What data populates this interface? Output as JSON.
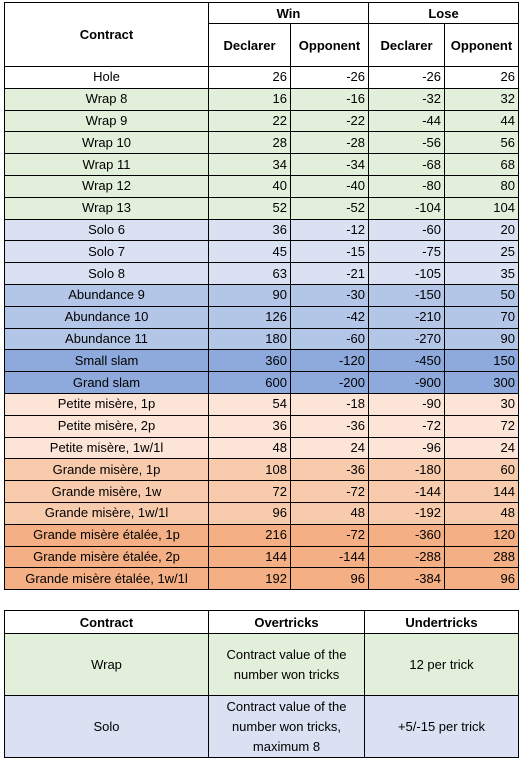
{
  "main": {
    "header": {
      "contract": "Contract",
      "win": "Win",
      "lose": "Lose",
      "declarer": "Declarer",
      "opponent": "Opponent"
    },
    "rows": [
      {
        "name": "Hole",
        "color": "#ffffff",
        "values": [
          "26",
          "-26",
          "-26",
          "26"
        ]
      },
      {
        "name": "Wrap 8",
        "color": "#e2efda",
        "values": [
          "16",
          "-16",
          "-32",
          "32"
        ]
      },
      {
        "name": "Wrap 9",
        "color": "#e2efda",
        "values": [
          "22",
          "-22",
          "-44",
          "44"
        ]
      },
      {
        "name": "Wrap 10",
        "color": "#e2efda",
        "values": [
          "28",
          "-28",
          "-56",
          "56"
        ]
      },
      {
        "name": "Wrap 11",
        "color": "#e2efda",
        "values": [
          "34",
          "-34",
          "-68",
          "68"
        ]
      },
      {
        "name": "Wrap 12",
        "color": "#e2efda",
        "values": [
          "40",
          "-40",
          "-80",
          "80"
        ]
      },
      {
        "name": "Wrap 13",
        "color": "#e2efda",
        "values": [
          "52",
          "-52",
          "-104",
          "104"
        ]
      },
      {
        "name": "Solo 6",
        "color": "#d9e1f2",
        "values": [
          "36",
          "-12",
          "-60",
          "20"
        ]
      },
      {
        "name": "Solo 7",
        "color": "#d9e1f2",
        "values": [
          "45",
          "-15",
          "-75",
          "25"
        ]
      },
      {
        "name": "Solo 8",
        "color": "#d9e1f2",
        "values": [
          "63",
          "-21",
          "-105",
          "35"
        ]
      },
      {
        "name": "Abundance 9",
        "color": "#b4c6e7",
        "values": [
          "90",
          "-30",
          "-150",
          "50"
        ]
      },
      {
        "name": "Abundance 10",
        "color": "#b4c6e7",
        "values": [
          "126",
          "-42",
          "-210",
          "70"
        ]
      },
      {
        "name": "Abundance 11",
        "color": "#b4c6e7",
        "values": [
          "180",
          "-60",
          "-270",
          "90"
        ]
      },
      {
        "name": "Small slam",
        "color": "#8ea9db",
        "values": [
          "360",
          "-120",
          "-450",
          "150"
        ]
      },
      {
        "name": "Grand slam",
        "color": "#8ea9db",
        "values": [
          "600",
          "-200",
          "-900",
          "300"
        ]
      },
      {
        "name": "Petite misère, 1p",
        "color": "#fce4d6",
        "values": [
          "54",
          "-18",
          "-90",
          "30"
        ]
      },
      {
        "name": "Petite misère, 2p",
        "color": "#fce4d6",
        "values": [
          "36",
          "-36",
          "-72",
          "72"
        ]
      },
      {
        "name": "Petite misère, 1w/1l",
        "color": "#fce4d6",
        "values": [
          "48",
          "24",
          "-96",
          "24"
        ]
      },
      {
        "name": "Grande misère, 1p",
        "color": "#f8cbad",
        "values": [
          "108",
          "-36",
          "-180",
          "60"
        ]
      },
      {
        "name": "Grande misère, 1w",
        "color": "#f8cbad",
        "values": [
          "72",
          "-72",
          "-144",
          "144"
        ]
      },
      {
        "name": "Grande misère, 1w/1l",
        "color": "#f8cbad",
        "values": [
          "96",
          "48",
          "-192",
          "48"
        ]
      },
      {
        "name": "Grande misère étalée, 1p",
        "color": "#f4b084",
        "values": [
          "216",
          "-72",
          "-360",
          "120"
        ]
      },
      {
        "name": "Grande misère étalée, 2p",
        "color": "#f4b084",
        "values": [
          "144",
          "-144",
          "-288",
          "288"
        ]
      },
      {
        "name": "Grande misère étalée, 1w/1l",
        "color": "#f4b084",
        "values": [
          "192",
          "96",
          "-384",
          "96"
        ]
      }
    ]
  },
  "secondary": {
    "header": {
      "contract": "Contract",
      "overtricks": "Overtricks",
      "undertricks": "Undertricks"
    },
    "rows": [
      {
        "name": "Wrap",
        "color": "#e2efda",
        "overtricks": "Contract value of the number won tricks",
        "undertricks": "12 per trick"
      },
      {
        "name": "Solo",
        "color": "#d9e1f2",
        "overtricks": "Contract value of the number won tricks, maximum 8",
        "undertricks": "+5/-15 per trick"
      }
    ]
  }
}
